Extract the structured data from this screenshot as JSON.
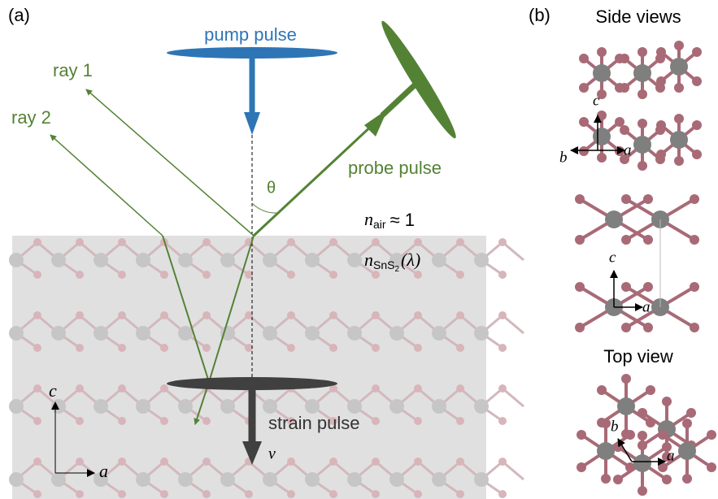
{
  "panel_a": {
    "label": "(a)",
    "pump": "pump pulse",
    "probe": "probe pulse",
    "ray1": "ray 1",
    "ray2": "ray 2",
    "theta": "θ",
    "n_air": {
      "symbol": "n",
      "subscript": "air",
      "rest": "≈ 1"
    },
    "n_sns2": {
      "symbol": "n",
      "subscript": "SnS",
      "subsub": "2",
      "rest": "(λ)"
    },
    "strain": "strain pulse",
    "velocity": "v",
    "axis_c": "c",
    "axis_a": "a"
  },
  "panel_b": {
    "label": "(b)",
    "side_views": "Side views",
    "top_view": "Top view",
    "side1_axes": {
      "c": "c",
      "b": "b",
      "a": "a"
    },
    "side2_axes": {
      "c": "c",
      "a": "a"
    },
    "top_axes": {
      "b": "b",
      "a": "a"
    }
  }
}
